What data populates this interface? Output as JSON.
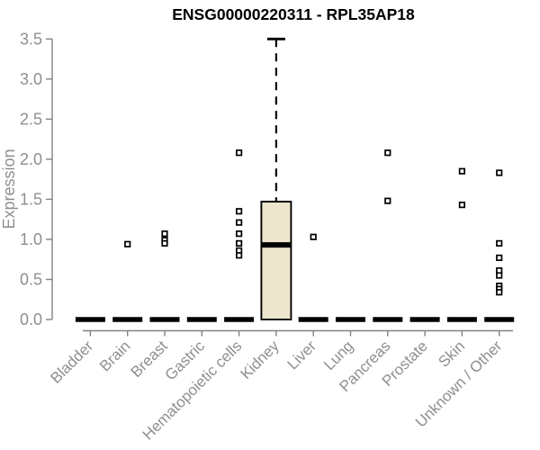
{
  "chart_data": {
    "type": "boxplot",
    "title": "ENSG00000220311 - RPL35AP18",
    "xlabel": "",
    "ylabel": "Expression",
    "ylim": [
      0.0,
      3.5
    ],
    "yticks": [
      0.0,
      0.5,
      1.0,
      1.5,
      2.0,
      2.5,
      3.0,
      3.5
    ],
    "grid": false,
    "legend": "none",
    "categories": [
      "Bladder",
      "Brain",
      "Breast",
      "Gastric",
      "Hematopoietic cells",
      "Kidney",
      "Liver",
      "Lung",
      "Pancreas",
      "Prostate",
      "Skin",
      "Unknown / Other"
    ],
    "boxes": [
      {
        "category": "Bladder",
        "low": 0,
        "q1": 0,
        "median": 0,
        "q3": 0,
        "high": 0,
        "outliers": []
      },
      {
        "category": "Brain",
        "low": 0,
        "q1": 0,
        "median": 0,
        "q3": 0,
        "high": 0,
        "outliers": [
          0.94
        ]
      },
      {
        "category": "Breast",
        "low": 0,
        "q1": 0,
        "median": 0,
        "q3": 0,
        "high": 0,
        "outliers": [
          1.07,
          0.99,
          0.95
        ]
      },
      {
        "category": "Gastric",
        "low": 0,
        "q1": 0,
        "median": 0,
        "q3": 0,
        "high": 0,
        "outliers": []
      },
      {
        "category": "Hematopoietic cells",
        "low": 0,
        "q1": 0,
        "median": 0,
        "q3": 0,
        "high": 0,
        "outliers": [
          2.08,
          1.35,
          1.21,
          1.07,
          0.95,
          0.86,
          0.8
        ]
      },
      {
        "category": "Kidney",
        "low": 0,
        "q1": 0,
        "median": 0.93,
        "q3": 1.47,
        "high": 3.5,
        "outliers": []
      },
      {
        "category": "Liver",
        "low": 0,
        "q1": 0,
        "median": 0,
        "q3": 0,
        "high": 0,
        "outliers": [
          1.03
        ]
      },
      {
        "category": "Lung",
        "low": 0,
        "q1": 0,
        "median": 0,
        "q3": 0,
        "high": 0,
        "outliers": []
      },
      {
        "category": "Pancreas",
        "low": 0,
        "q1": 0,
        "median": 0,
        "q3": 0,
        "high": 0,
        "outliers": [
          2.08,
          1.48
        ]
      },
      {
        "category": "Prostate",
        "low": 0,
        "q1": 0,
        "median": 0,
        "q3": 0,
        "high": 0,
        "outliers": []
      },
      {
        "category": "Skin",
        "low": 0,
        "q1": 0,
        "median": 0,
        "q3": 0,
        "high": 0,
        "outliers": [
          1.85,
          1.43
        ]
      },
      {
        "category": "Unknown / Other",
        "low": 0,
        "q1": 0,
        "median": 0,
        "q3": 0,
        "high": 0,
        "outliers": [
          1.83,
          0.95,
          0.77,
          0.61,
          0.55,
          0.42,
          0.38,
          0.34
        ]
      }
    ],
    "colors": {
      "box_fill": "#ECE7CC",
      "box_stroke": "#000000",
      "median": "#000000",
      "outlier_fill": "#FFFFFF",
      "axis": "#828282",
      "tick_label": "#8F8F8F",
      "title": "#000000",
      "background": "#FFFFFF"
    }
  }
}
